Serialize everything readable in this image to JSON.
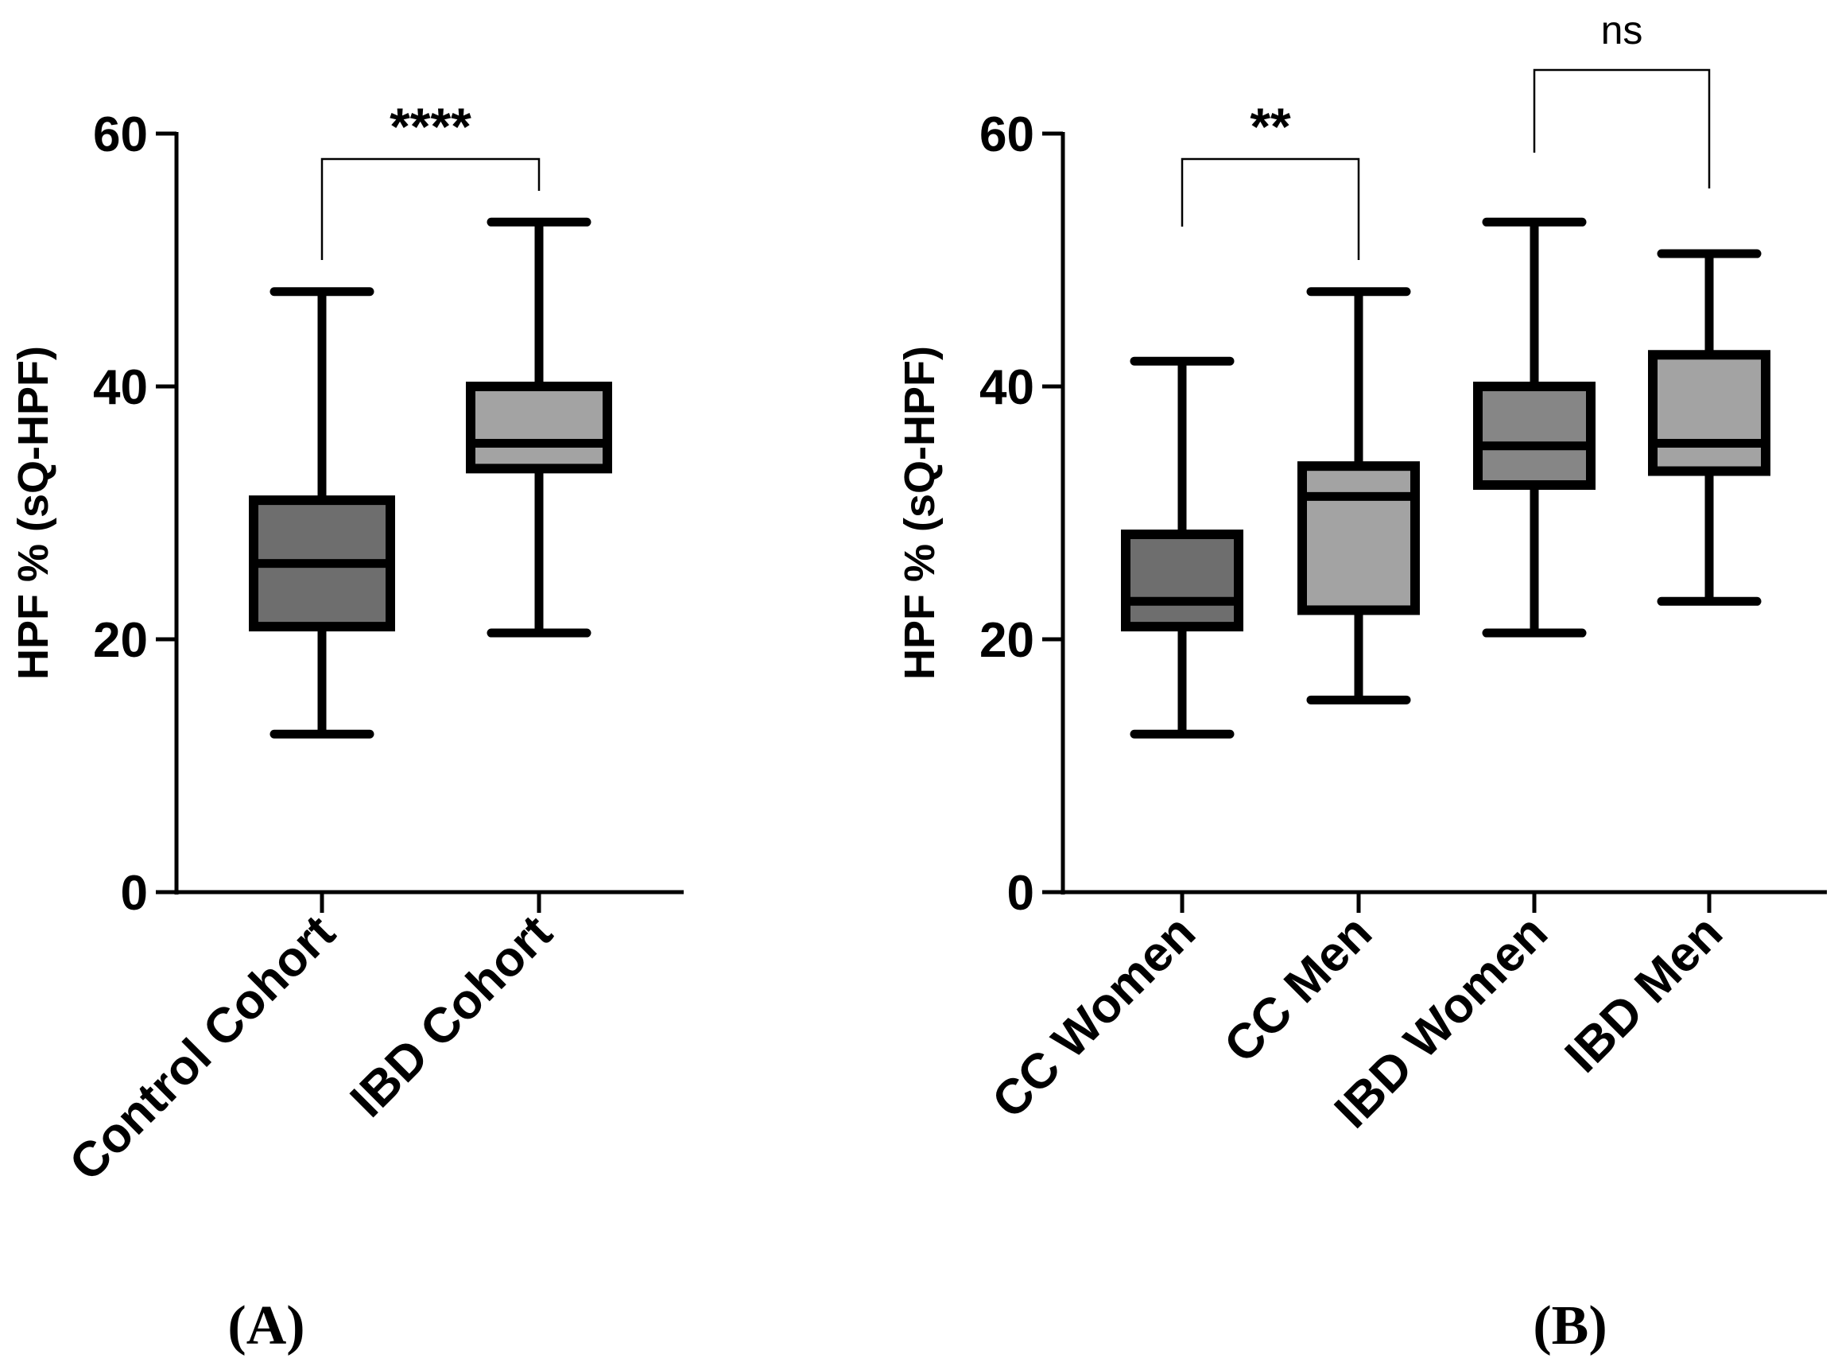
{
  "chart_data": [
    {
      "type": "box",
      "panel": "(A)",
      "ylabel": "HPF % (sQ-HPF)",
      "ylim": [
        0,
        60
      ],
      "yticks": [
        0,
        20,
        40,
        60
      ],
      "categories": [
        "Control Cohort",
        "IBD Cohort"
      ],
      "series": [
        {
          "name": "Control Cohort",
          "min": 12.5,
          "q1": 21,
          "median": 26,
          "q3": 31,
          "max": 47.5,
          "fill": "#6e6e6e"
        },
        {
          "name": "IBD Cohort",
          "min": 20.5,
          "q1": 33.5,
          "median": 35.5,
          "q3": 40,
          "max": 53,
          "fill": "#a3a3a3"
        }
      ],
      "significance": [
        {
          "from": 0,
          "to": 1,
          "label": "****"
        }
      ]
    },
    {
      "type": "box",
      "panel": "(B)",
      "ylabel": "HPF % (sQ-HPF)",
      "ylim": [
        0,
        60
      ],
      "yticks": [
        0,
        20,
        40,
        60
      ],
      "categories": [
        "CC Women",
        "CC Men",
        "IBD Women",
        "IBD Men"
      ],
      "series": [
        {
          "name": "CC Women",
          "min": 12.5,
          "q1": 21,
          "median": 23,
          "q3": 28.3,
          "max": 42,
          "fill": "#6e6e6e"
        },
        {
          "name": "CC Men",
          "min": 15.2,
          "q1": 22.3,
          "median": 31.3,
          "q3": 33.7,
          "max": 47.5,
          "fill": "#a3a3a3"
        },
        {
          "name": "IBD Women",
          "min": 20.5,
          "q1": 32.2,
          "median": 35.3,
          "q3": 40,
          "max": 53,
          "fill": "#868686"
        },
        {
          "name": "IBD Men",
          "min": 23,
          "q1": 33.3,
          "median": 35.5,
          "q3": 42.5,
          "max": 50.5,
          "fill": "#a3a3a3"
        }
      ],
      "significance": [
        {
          "from": 0,
          "to": 1,
          "label": "**"
        },
        {
          "from": 2,
          "to": 3,
          "label": "ns"
        }
      ]
    }
  ]
}
